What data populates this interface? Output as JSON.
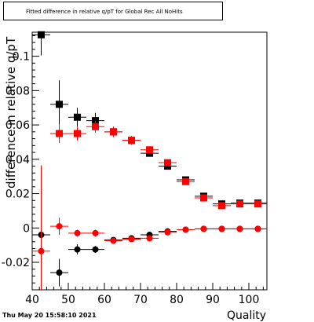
{
  "chart_data": {
    "type": "scatter",
    "title": "Fitted difference in relative q/pT for Global Rec All NoHits",
    "xlabel": "Quality",
    "ylabel": "difference in relative q/pT",
    "xlim": [
      40,
      105
    ],
    "ylim": [
      -0.036,
      0.114
    ],
    "x_ticks": [
      40,
      50,
      60,
      70,
      80,
      90,
      100
    ],
    "x_tick_labels": [
      "40",
      "50",
      "60",
      "70",
      "80",
      "90",
      "100"
    ],
    "y_ticks": [
      -0.02,
      0,
      0.02,
      0.04,
      0.06,
      0.08,
      0.1
    ],
    "y_tick_labels": [
      "-0.02",
      "0",
      "0.02",
      "0.04",
      "0.06",
      "0.08",
      "0.1"
    ],
    "grid": false,
    "series": [
      {
        "color": "#000000",
        "marker": "square",
        "x": [
          42.5,
          47.5,
          52.5,
          57.5,
          62.5,
          67.5,
          72.5,
          77.5,
          82.5,
          87.5,
          92.5,
          97.5,
          102.5
        ],
        "y": [
          0.1125,
          0.072,
          0.0645,
          0.0625,
          0.056,
          0.051,
          0.0435,
          0.036,
          0.028,
          0.0185,
          0.014,
          0.0145,
          0.0145
        ],
        "yerr": [
          0.012,
          0.014,
          0.0055,
          0.0045,
          0.003,
          0.0025,
          0.002,
          0.0015,
          0.0012,
          0.0012,
          0.0012,
          0.0012,
          0.0012
        ]
      },
      {
        "color": "#ff0000",
        "marker": "square",
        "x": [
          47.5,
          52.5,
          57.5,
          62.5,
          67.5,
          72.5,
          77.5,
          82.5,
          87.5,
          92.5,
          97.5,
          102.5
        ],
        "y": [
          0.055,
          0.055,
          0.059,
          0.056,
          0.051,
          0.0455,
          0.038,
          0.027,
          0.0175,
          0.013,
          0.014,
          0.014
        ],
        "yerr": [
          0.0055,
          0.004,
          0.0035,
          0.003,
          0.0025,
          0.002,
          0.0015,
          0.0012,
          0.0012,
          0.0012,
          0.0012,
          0.0012
        ]
      },
      {
        "color": "#000000",
        "marker": "circle",
        "x": [
          42.5,
          47.5,
          52.5,
          57.5,
          62.5,
          67.5,
          72.5,
          77.5,
          82.5,
          87.5,
          92.5,
          97.5,
          102.5
        ],
        "y": [
          -0.004,
          -0.026,
          -0.0125,
          -0.0125,
          -0.007,
          -0.006,
          -0.004,
          -0.002,
          -0.001,
          -0.0005,
          -0.0005,
          -0.0005,
          -0.0005
        ],
        "yerr": [
          0.01,
          0.008,
          0.003,
          0.002,
          0.0015,
          0.0012,
          0.0012,
          0.001,
          0.0008,
          0.0008,
          0.0008,
          0.0008,
          0.0008
        ]
      },
      {
        "color": "#ff0000",
        "marker": "circle",
        "x": [
          42.5,
          47.5,
          52.5,
          57.5,
          62.5,
          67.5,
          72.5,
          77.5,
          82.5,
          87.5,
          92.5,
          97.5,
          102.5
        ],
        "y": [
          -0.0135,
          0.001,
          -0.003,
          -0.003,
          -0.0075,
          -0.0065,
          -0.006,
          -0.0025,
          -0.001,
          -0.0005,
          -0.0005,
          -0.0005,
          -0.0005
        ],
        "yerr": [
          0.05,
          0.005,
          0.002,
          0.002,
          0.0015,
          0.0012,
          0.0012,
          0.001,
          0.0008,
          0.0008,
          0.0008,
          0.0008,
          0.0008
        ]
      }
    ]
  },
  "footer": {
    "timestamp": "Thu May 20 15:58:10 2021"
  }
}
